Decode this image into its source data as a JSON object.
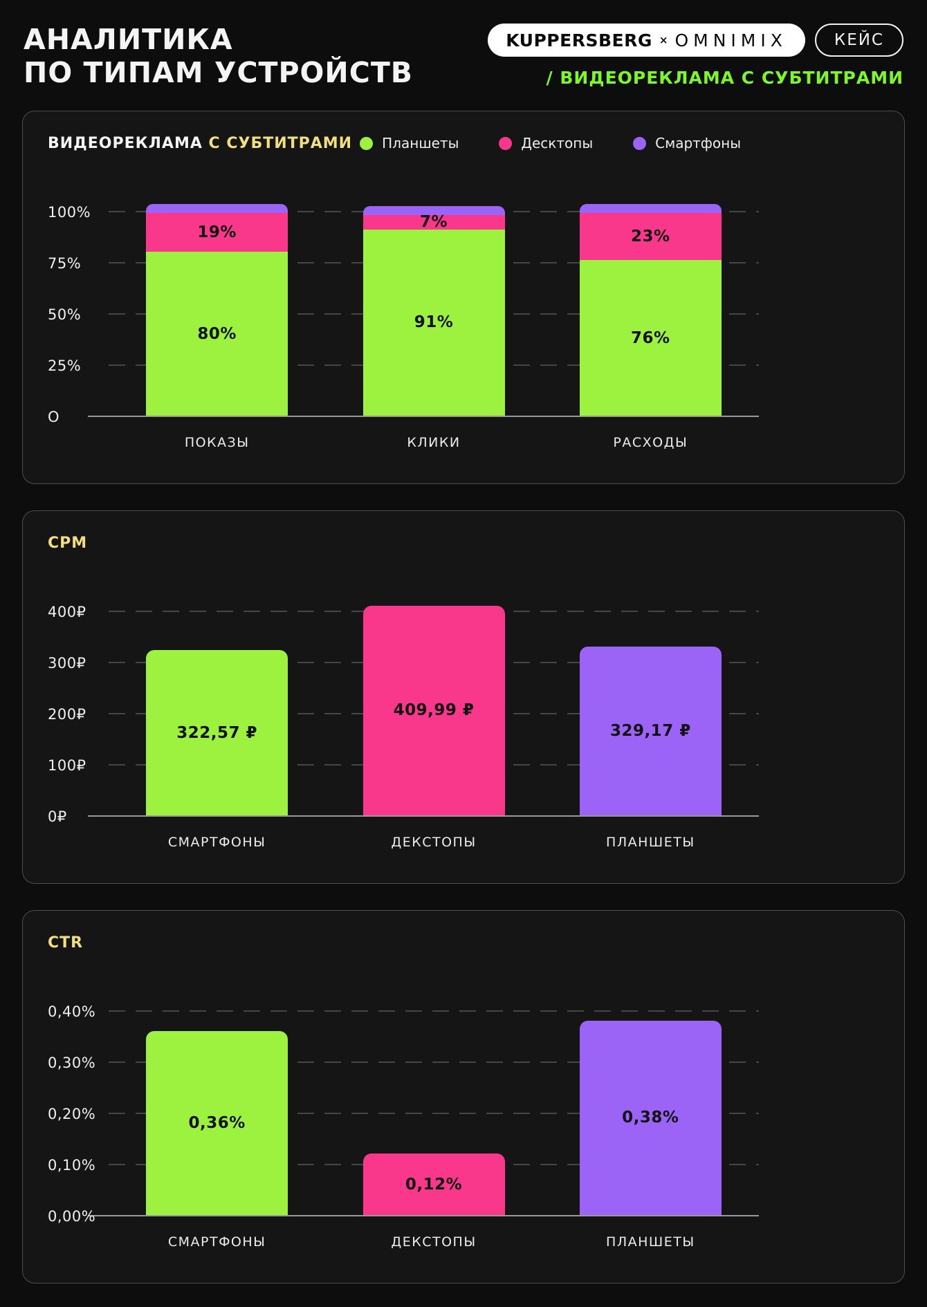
{
  "header": {
    "title_line1": "АНАЛИТИКА",
    "title_line2": "ПО ТИПАМ УСТРОЙСТВ",
    "brand_left": "KUPPERSBERG",
    "brand_separator": "×",
    "brand_right": "OMNIMIX",
    "case_badge": "КЕЙС",
    "subtitle": "/ ВИДЕОРЕКЛАМА С СУБТИТРАМИ"
  },
  "colors": {
    "green": "#9CF23F",
    "pink": "#F9388C",
    "purple": "#9C63F7",
    "yellow": "#F2DF7D",
    "accent": "#7DF826"
  },
  "chart_data": [
    {
      "type": "stacked-bar",
      "title_white": "ВИДЕОРЕКЛАМА",
      "title_accent": "С СУБТИТРАМИ",
      "legend": [
        {
          "label": "Планшеты",
          "color": "green"
        },
        {
          "label": "Десктопы",
          "color": "pink"
        },
        {
          "label": "Смартфоны",
          "color": "purple"
        }
      ],
      "categories": [
        "ПОКАЗЫ",
        "КЛИКИ",
        "РАСХОДЫ"
      ],
      "yticks": [
        {
          "label": "100%",
          "value": 100
        },
        {
          "label": "75%",
          "value": 75
        },
        {
          "label": "50%",
          "value": 50
        },
        {
          "label": "25%",
          "value": 25
        },
        {
          "label": "O",
          "value": 0
        }
      ],
      "ymax": 100,
      "grid": "dashed-horizontal",
      "legend_position": "top-right",
      "series": [
        {
          "name": "Планшеты",
          "color": "green",
          "values": [
            80,
            91,
            76
          ],
          "labels": [
            "80%",
            "91%",
            "76%"
          ]
        },
        {
          "name": "Десктопы",
          "color": "pink",
          "values": [
            19,
            7,
            23
          ],
          "labels": [
            "19%",
            "7%",
            "23%"
          ]
        },
        {
          "name": "Смартфоны",
          "color": "purple",
          "values": [
            1,
            2,
            1
          ],
          "labels": [
            "",
            "",
            ""
          ]
        }
      ]
    },
    {
      "type": "bar",
      "title": "CPM",
      "categories": [
        "СМАРТФОНЫ",
        "ДЕКСТОПЫ",
        "ПЛАНШЕТЫ"
      ],
      "yticks": [
        {
          "label": "400₽",
          "value": 400
        },
        {
          "label": "300₽",
          "value": 300
        },
        {
          "label": "200₽",
          "value": 200
        },
        {
          "label": "100₽",
          "value": 100
        },
        {
          "label": "0₽",
          "value": 0
        }
      ],
      "ymax": 400,
      "grid": "dashed-horizontal",
      "values": [
        322.57,
        409.99,
        329.17
      ],
      "labels": [
        "322,57 ₽",
        "409,99 ₽",
        "329,17 ₽"
      ],
      "bar_colors": [
        "green",
        "pink",
        "purple"
      ]
    },
    {
      "type": "bar",
      "title": "CTR",
      "categories": [
        "СМАРТФОНЫ",
        "ДЕКСТОПЫ",
        "ПЛАНШЕТЫ"
      ],
      "yticks": [
        {
          "label": "0,40%",
          "value": 0.4
        },
        {
          "label": "0,30%",
          "value": 0.3
        },
        {
          "label": "0,20%",
          "value": 0.2
        },
        {
          "label": "0,10%",
          "value": 0.1
        },
        {
          "label": "0,00%",
          "value": 0
        }
      ],
      "ymax": 0.4,
      "grid": "dashed-horizontal",
      "values": [
        0.36,
        0.12,
        0.38
      ],
      "labels": [
        "0,36%",
        "0,12%",
        "0,38%"
      ],
      "bar_colors": [
        "green",
        "pink",
        "purple"
      ]
    }
  ]
}
